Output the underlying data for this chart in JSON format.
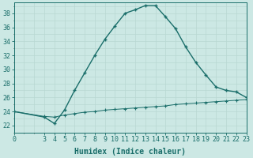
{
  "xlabel": "Humidex (Indice chaleur)",
  "background_color": "#cce8e4",
  "grid_color": "#b8d8d2",
  "line_color": "#1a6e6a",
  "xlim": [
    0,
    23
  ],
  "ylim": [
    21.5,
    39.5
  ],
  "xticks": [
    0,
    3,
    4,
    5,
    6,
    7,
    8,
    9,
    10,
    11,
    12,
    13,
    14,
    15,
    16,
    17,
    18,
    19,
    20,
    21,
    22,
    23
  ],
  "xtick_labels": [
    "0",
    "3",
    "4",
    "5",
    "6",
    "7",
    "8",
    "9",
    "10",
    "11",
    "12",
    "13",
    "14",
    "15",
    "16",
    "17",
    "18",
    "19",
    "20",
    "21",
    "22",
    "23"
  ],
  "yticks": [
    22,
    24,
    26,
    28,
    30,
    32,
    34,
    36,
    38
  ],
  "humidex_x": [
    0,
    3,
    4,
    5,
    6,
    7,
    8,
    9,
    10,
    11,
    12,
    13,
    14,
    15,
    16,
    17,
    18,
    19,
    20,
    21,
    22,
    23
  ],
  "humidex_y": [
    24.0,
    23.2,
    22.3,
    24.2,
    27.0,
    29.5,
    32.0,
    34.3,
    36.2,
    38.0,
    38.5,
    39.1,
    39.1,
    37.5,
    35.8,
    33.2,
    31.0,
    29.2,
    27.5,
    27.0,
    26.8,
    26.0
  ],
  "baseline_x": [
    0,
    3,
    4,
    5,
    6,
    7,
    8,
    9,
    10,
    11,
    12,
    13,
    14,
    15,
    16,
    17,
    18,
    19,
    20,
    21,
    22,
    23
  ],
  "baseline_y": [
    24.0,
    23.3,
    23.2,
    23.5,
    23.7,
    23.9,
    24.0,
    24.2,
    24.3,
    24.4,
    24.5,
    24.6,
    24.7,
    24.8,
    25.0,
    25.1,
    25.2,
    25.3,
    25.4,
    25.5,
    25.6,
    25.7
  ],
  "markersize": 2.5,
  "linewidth": 1.0,
  "axis_fontsize": 7,
  "tick_fontsize": 6
}
